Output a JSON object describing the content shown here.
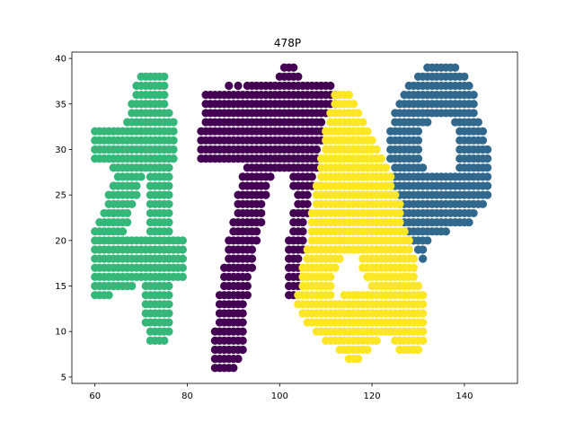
{
  "chart_data": {
    "type": "scatter",
    "title": "478P",
    "xlabel": "",
    "ylabel": "",
    "xlim": [
      55,
      151.5
    ],
    "ylim": [
      4.3,
      40.7
    ],
    "xticks": [
      60,
      80,
      100,
      120,
      140
    ],
    "yticks": [
      5,
      10,
      15,
      20,
      25,
      30,
      35,
      40
    ],
    "grid": false,
    "series": [
      {
        "color": "#440154",
        "runs": [
          [
            39,
            101,
            103
          ],
          [
            38,
            100,
            104
          ],
          [
            37,
            89,
            89
          ],
          [
            37,
            91,
            91
          ],
          [
            37,
            93,
            111
          ],
          [
            36,
            84,
            112
          ],
          [
            35,
            84,
            112
          ],
          [
            34,
            84,
            110
          ],
          [
            33,
            84,
            109
          ],
          [
            32,
            83,
            109
          ],
          [
            31,
            83,
            109
          ],
          [
            30,
            83,
            108
          ],
          [
            29,
            83,
            108
          ],
          [
            28,
            93,
            108
          ],
          [
            27,
            92,
            98
          ],
          [
            27,
            103,
            107
          ],
          [
            26,
            92,
            97
          ],
          [
            26,
            103,
            107
          ],
          [
            25,
            91,
            97
          ],
          [
            25,
            104,
            106
          ],
          [
            24,
            91,
            96
          ],
          [
            24,
            104,
            106
          ],
          [
            23,
            91,
            96
          ],
          [
            23,
            103,
            106
          ],
          [
            22,
            90,
            96
          ],
          [
            22,
            103,
            105
          ],
          [
            21,
            90,
            95
          ],
          [
            21,
            103,
            105
          ],
          [
            20,
            89,
            95
          ],
          [
            20,
            102,
            105
          ],
          [
            19,
            89,
            94
          ],
          [
            19,
            102,
            105
          ],
          [
            18,
            89,
            94
          ],
          [
            18,
            102,
            104
          ],
          [
            17,
            88,
            94
          ],
          [
            17,
            102,
            104
          ],
          [
            16,
            88,
            93
          ],
          [
            16,
            102,
            104
          ],
          [
            15,
            88,
            93
          ],
          [
            15,
            102,
            104
          ],
          [
            14,
            87,
            93
          ],
          [
            14,
            102,
            103
          ],
          [
            13,
            87,
            92
          ],
          [
            12,
            87,
            92
          ],
          [
            11,
            87,
            92
          ],
          [
            10,
            86,
            92
          ],
          [
            9,
            86,
            92
          ],
          [
            8,
            86,
            92
          ],
          [
            7,
            86,
            91
          ],
          [
            6,
            86,
            90
          ]
        ]
      },
      {
        "color": "#31688e",
        "runs": [
          [
            39,
            132,
            138
          ],
          [
            38,
            130,
            140
          ],
          [
            37,
            128,
            141
          ],
          [
            36,
            127,
            142
          ],
          [
            35,
            126,
            142
          ],
          [
            34,
            125,
            142
          ],
          [
            33,
            125,
            132
          ],
          [
            33,
            138,
            143
          ],
          [
            32,
            124,
            130
          ],
          [
            32,
            139,
            144
          ],
          [
            31,
            124,
            130
          ],
          [
            31,
            139,
            144
          ],
          [
            30,
            124,
            130
          ],
          [
            30,
            139,
            145
          ],
          [
            29,
            124,
            130
          ],
          [
            29,
            139,
            145
          ],
          [
            28,
            125,
            131
          ],
          [
            28,
            139,
            145
          ],
          [
            27,
            125,
            145
          ],
          [
            26,
            125,
            145
          ],
          [
            25,
            126,
            145
          ],
          [
            24,
            126,
            144
          ],
          [
            23,
            126,
            142
          ],
          [
            22,
            127,
            141
          ],
          [
            21,
            128,
            136
          ],
          [
            20,
            128,
            132
          ],
          [
            19,
            130,
            131
          ],
          [
            18,
            131,
            131
          ]
        ]
      },
      {
        "color": "#35b779",
        "runs": [
          [
            38,
            70,
            75
          ],
          [
            37,
            69,
            75
          ],
          [
            36,
            69,
            75
          ],
          [
            35,
            68,
            75
          ],
          [
            34,
            68,
            76
          ],
          [
            33,
            67,
            77
          ],
          [
            32,
            60,
            77
          ],
          [
            31,
            60,
            77
          ],
          [
            30,
            60,
            77
          ],
          [
            29,
            60,
            77
          ],
          [
            28,
            64,
            76
          ],
          [
            27,
            65,
            70
          ],
          [
            27,
            72,
            76
          ],
          [
            26,
            64,
            69
          ],
          [
            26,
            72,
            76
          ],
          [
            25,
            63,
            69
          ],
          [
            25,
            72,
            76
          ],
          [
            24,
            63,
            68
          ],
          [
            24,
            72,
            76
          ],
          [
            23,
            62,
            67
          ],
          [
            23,
            72,
            76
          ],
          [
            22,
            61,
            67
          ],
          [
            22,
            72,
            76
          ],
          [
            21,
            60,
            66
          ],
          [
            21,
            72,
            76
          ],
          [
            20,
            60,
            79
          ],
          [
            19,
            60,
            79
          ],
          [
            18,
            60,
            79
          ],
          [
            17,
            60,
            79
          ],
          [
            16,
            60,
            79
          ],
          [
            15,
            60,
            68
          ],
          [
            15,
            71,
            76
          ],
          [
            14,
            60,
            63
          ],
          [
            14,
            71,
            76
          ],
          [
            13,
            71,
            76
          ],
          [
            12,
            71,
            76
          ],
          [
            11,
            71,
            76
          ],
          [
            10,
            72,
            76
          ],
          [
            9,
            72,
            75
          ]
        ]
      },
      {
        "color": "#fde725",
        "runs": [
          [
            36,
            112,
            115
          ],
          [
            35,
            112,
            116
          ],
          [
            34,
            111,
            117
          ],
          [
            33,
            111,
            118
          ],
          [
            32,
            110,
            119
          ],
          [
            31,
            110,
            120
          ],
          [
            30,
            110,
            121
          ],
          [
            29,
            109,
            122
          ],
          [
            28,
            109,
            123
          ],
          [
            27,
            109,
            124
          ],
          [
            26,
            108,
            124
          ],
          [
            25,
            108,
            125
          ],
          [
            24,
            108,
            126
          ],
          [
            23,
            107,
            126
          ],
          [
            22,
            107,
            126
          ],
          [
            21,
            107,
            127
          ],
          [
            20,
            107,
            128
          ],
          [
            19,
            106,
            128
          ],
          [
            18,
            106,
            113
          ],
          [
            18,
            118,
            129
          ],
          [
            17,
            105,
            112
          ],
          [
            17,
            118,
            129
          ],
          [
            16,
            105,
            111
          ],
          [
            16,
            119,
            129
          ],
          [
            15,
            105,
            111
          ],
          [
            15,
            120,
            130
          ],
          [
            14,
            104,
            111
          ],
          [
            14,
            114,
            131
          ],
          [
            13,
            104,
            131
          ],
          [
            12,
            105,
            131
          ],
          [
            11,
            106,
            131
          ],
          [
            10,
            108,
            131
          ],
          [
            9,
            110,
            121
          ],
          [
            9,
            125,
            131
          ],
          [
            8,
            113,
            119
          ],
          [
            8,
            126,
            130
          ],
          [
            7,
            115,
            117
          ]
        ]
      }
    ]
  }
}
